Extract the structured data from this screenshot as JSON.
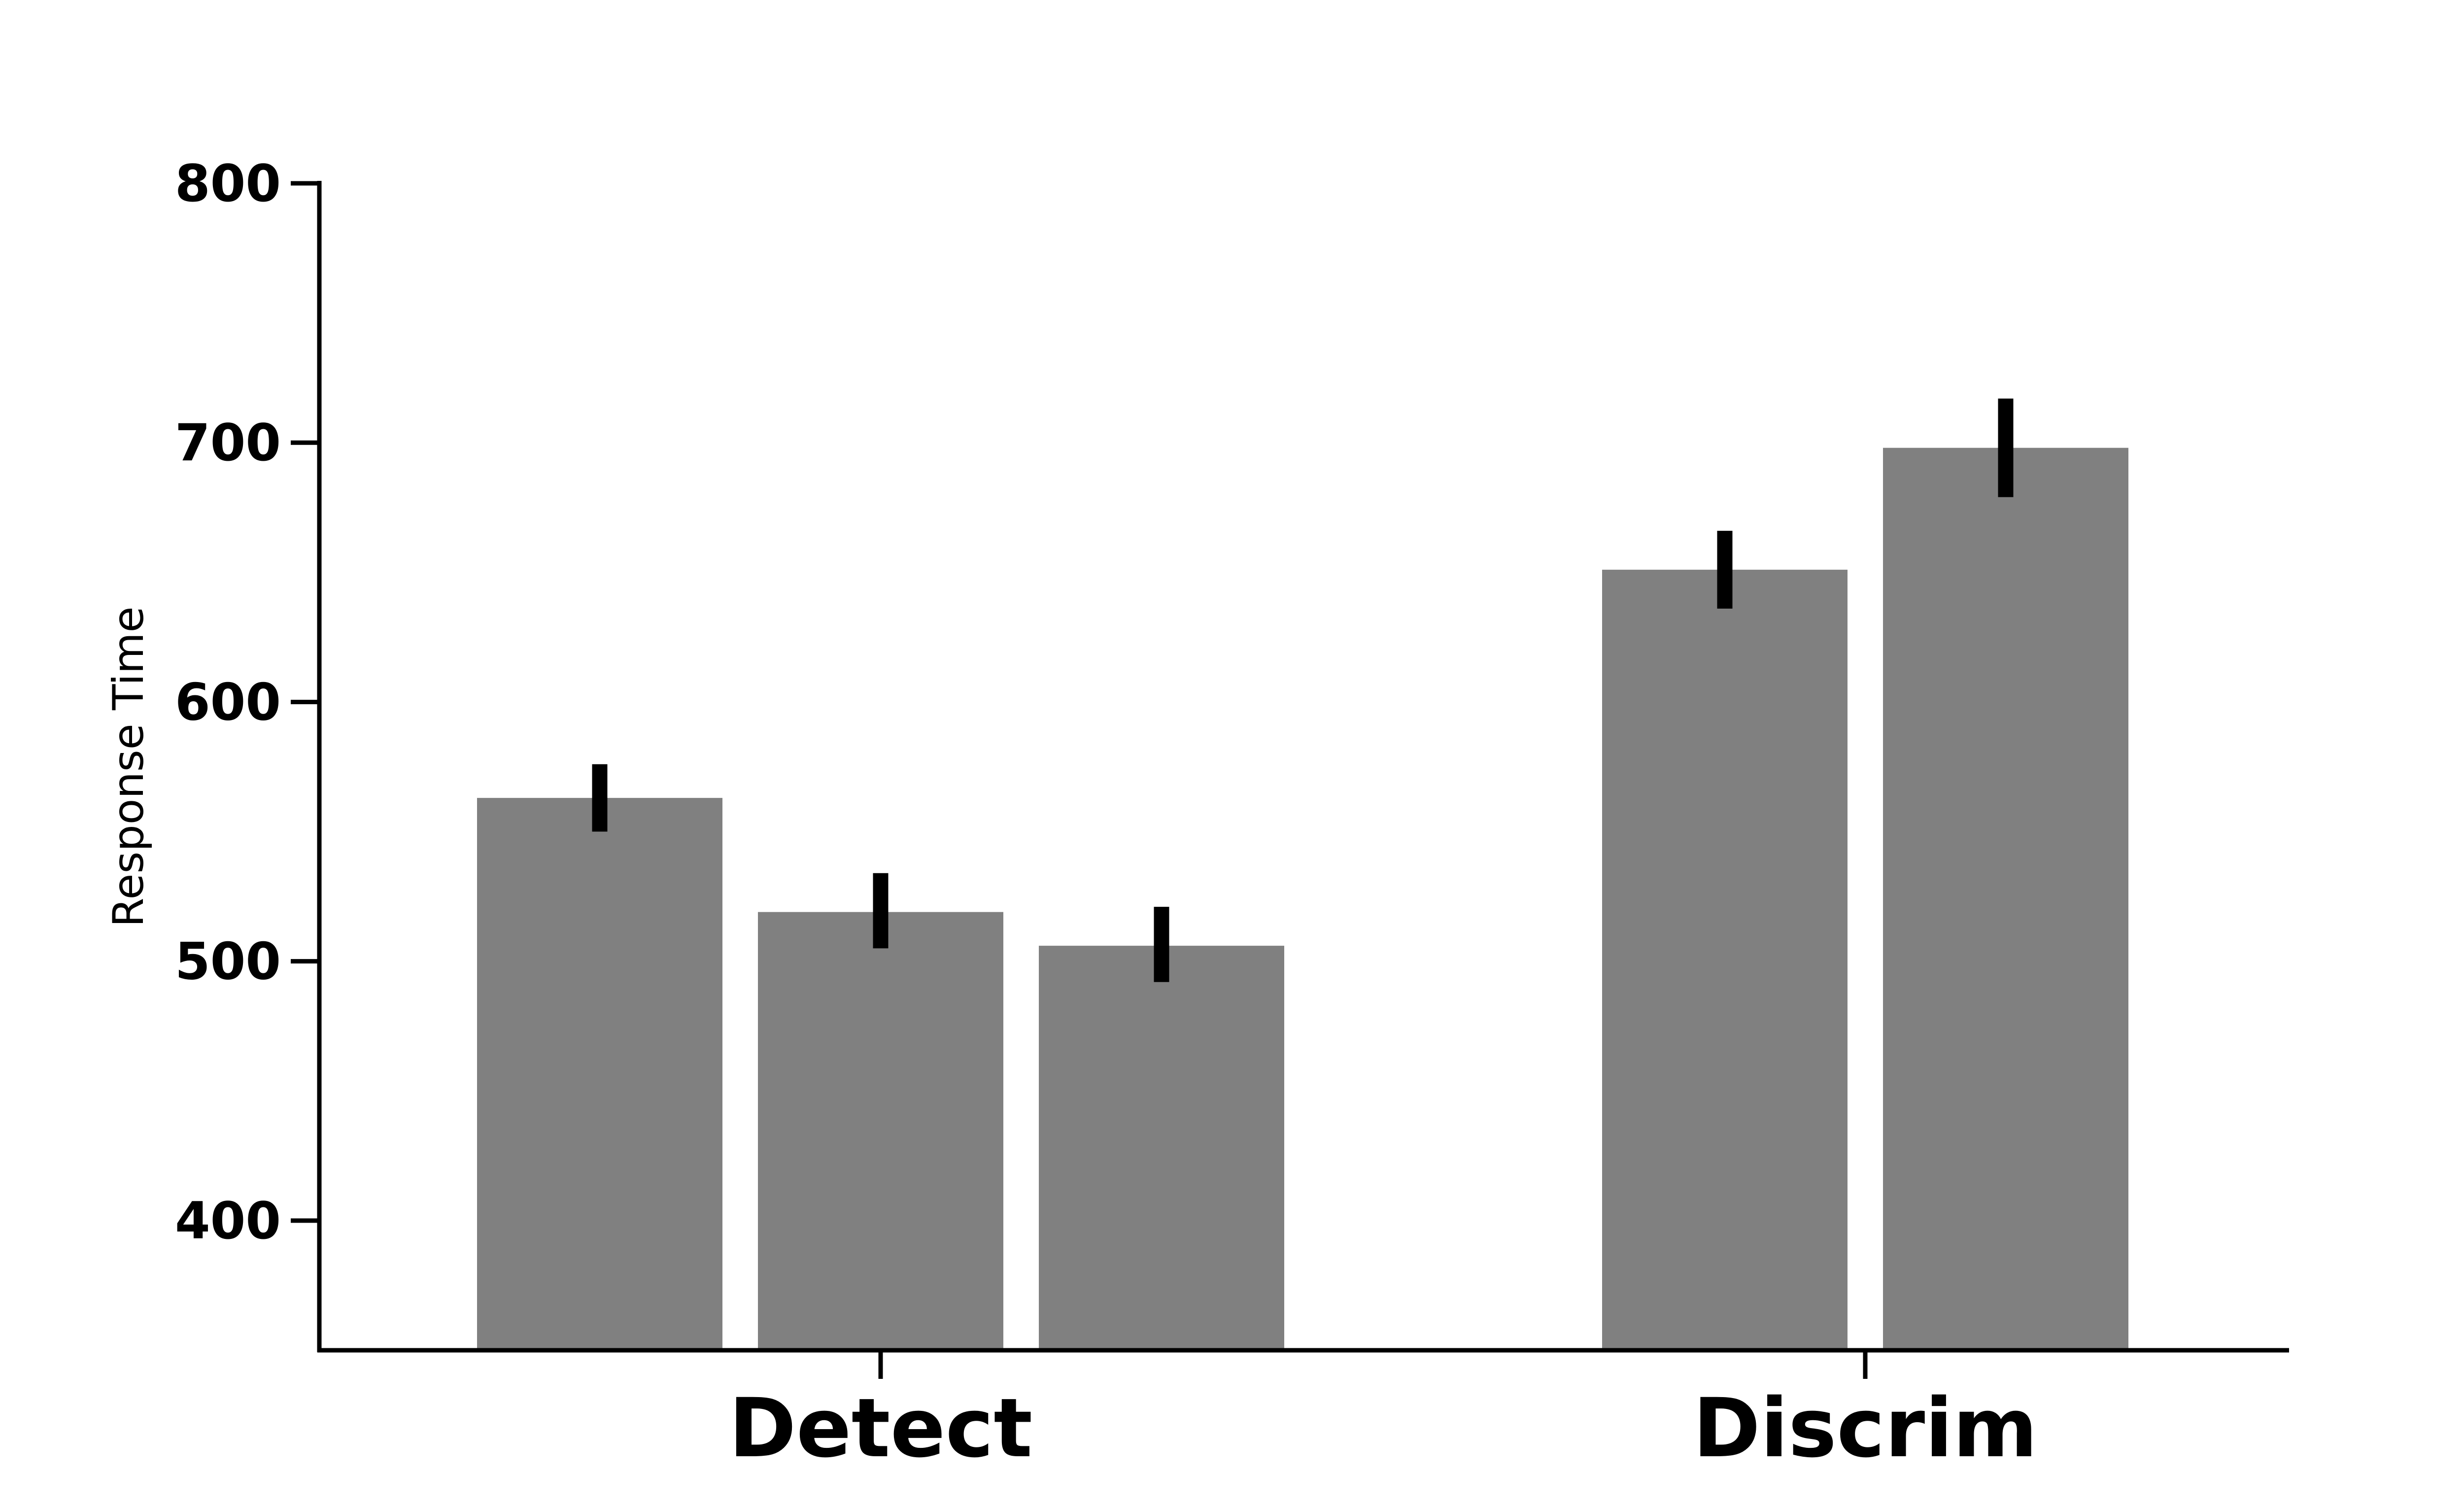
{
  "chart_data": {
    "type": "bar",
    "title": "",
    "xlabel": "",
    "ylabel": "Response Time",
    "ylim": [
      350,
      800
    ],
    "yticks": [
      400,
      500,
      600,
      700,
      800
    ],
    "categories": [
      "Detect",
      "Discrim"
    ],
    "bar_color": "#808080",
    "error_color": "#000000",
    "grid": false,
    "legend": false,
    "groups": [
      {
        "category": "Detect",
        "bars": [
          {
            "value": 563,
            "err_low": 550,
            "err_high": 576
          },
          {
            "value": 519,
            "err_low": 505,
            "err_high": 534
          },
          {
            "value": 506,
            "err_low": 492,
            "err_high": 521
          }
        ]
      },
      {
        "category": "Discrim",
        "bars": [
          {
            "value": 651,
            "err_low": 636,
            "err_high": 666
          },
          {
            "value": 698,
            "err_low": 679,
            "err_high": 717
          }
        ]
      }
    ]
  }
}
